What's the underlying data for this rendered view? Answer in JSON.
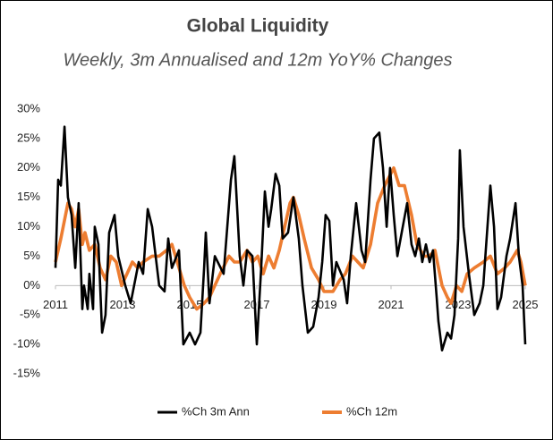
{
  "chart_data": {
    "type": "line",
    "title": "Global Liquidity",
    "subtitle": "Weekly, 3m Annualised and 12m YoY% Changes",
    "xlim": [
      2011,
      2025
    ],
    "xticks": [
      2011,
      2013,
      2015,
      2017,
      2019,
      2021,
      2023,
      2025
    ],
    "ylim": [
      -15,
      30
    ],
    "yticks": [
      {
        "value": -15,
        "label": "-15%"
      },
      {
        "value": -10,
        "label": "-10%"
      },
      {
        "value": -5,
        "label": "-5%"
      },
      {
        "value": 0,
        "label": "0%"
      },
      {
        "value": 5,
        "label": "5%"
      },
      {
        "value": 10,
        "label": "10%"
      },
      {
        "value": 15,
        "label": "15%"
      },
      {
        "value": 20,
        "label": "20%"
      },
      {
        "value": 25,
        "label": "25%"
      },
      {
        "value": 30,
        "label": "30%"
      }
    ],
    "grid": false,
    "legend": "bottom",
    "series": [
      {
        "name": "%Ch 3m Ann",
        "color": "#000000",
        "x": [
          2011.0,
          2011.08,
          2011.16,
          2011.27,
          2011.37,
          2011.48,
          2011.59,
          2011.69,
          2011.8,
          2011.85,
          2011.96,
          2012.01,
          2012.12,
          2012.17,
          2012.28,
          2012.39,
          2012.49,
          2012.6,
          2012.76,
          2012.87,
          2013.08,
          2013.24,
          2013.48,
          2013.61,
          2013.75,
          2013.88,
          2014.09,
          2014.25,
          2014.36,
          2014.47,
          2014.68,
          2014.81,
          2015.0,
          2015.16,
          2015.32,
          2015.43,
          2015.48,
          2015.59,
          2015.75,
          2016.01,
          2016.23,
          2016.33,
          2016.49,
          2016.6,
          2016.71,
          2016.87,
          2017.0,
          2017.13,
          2017.24,
          2017.35,
          2017.43,
          2017.56,
          2017.67,
          2017.77,
          2017.93,
          2018.09,
          2018.25,
          2018.36,
          2018.52,
          2018.68,
          2018.84,
          2018.95,
          2019.05,
          2019.16,
          2019.27,
          2019.37,
          2019.59,
          2019.69,
          2019.8,
          2019.96,
          2020.12,
          2020.23,
          2020.39,
          2020.49,
          2020.65,
          2020.76,
          2020.87,
          2020.97,
          2021.08,
          2021.19,
          2021.35,
          2021.48,
          2021.61,
          2021.72,
          2021.83,
          2021.93,
          2022.04,
          2022.15,
          2022.25,
          2022.36,
          2022.41,
          2022.52,
          2022.68,
          2022.79,
          2022.89,
          2023.0,
          2023.05,
          2023.16,
          2023.32,
          2023.48,
          2023.64,
          2023.75,
          2023.96,
          2024.07,
          2024.17,
          2024.28,
          2024.44,
          2024.55,
          2024.71,
          2024.81,
          2024.92,
          2025.0
        ],
        "values": [
          3,
          18,
          17,
          27,
          15,
          12,
          3,
          14,
          -4,
          0,
          -4,
          2,
          -4,
          10,
          7,
          -8,
          -5,
          9,
          12,
          5,
          0,
          -3,
          4,
          2,
          13,
          10,
          0,
          -1,
          8,
          3,
          6,
          -10,
          -8,
          -10,
          -8,
          3,
          9,
          -3,
          5,
          2,
          18,
          22,
          5,
          0,
          6,
          5,
          -10,
          3,
          16,
          10,
          13,
          19,
          17,
          8,
          9,
          15,
          8,
          0,
          -8,
          -7,
          -2,
          4,
          12,
          11,
          0,
          4,
          1,
          -3,
          5,
          14,
          6,
          4,
          18,
          25,
          26,
          20,
          10,
          20,
          12,
          5,
          10,
          14,
          7,
          5,
          8,
          4,
          7,
          4,
          6,
          -2,
          -6,
          -11,
          -8,
          -9,
          -5,
          8,
          23,
          10,
          2,
          -5,
          -3,
          0,
          17,
          10,
          -4,
          -2,
          5,
          8,
          14,
          5,
          0,
          -10
        ]
      },
      {
        "name": "%Ch 12m",
        "color": "#ed7d31",
        "x": [
          2011.0,
          2011.16,
          2011.37,
          2011.48,
          2011.59,
          2011.69,
          2011.8,
          2011.88,
          2012.01,
          2012.17,
          2012.33,
          2012.49,
          2012.65,
          2012.81,
          2012.97,
          2013.13,
          2013.29,
          2013.45,
          2013.61,
          2013.88,
          2014.09,
          2014.31,
          2014.47,
          2014.63,
          2014.84,
          2015.0,
          2015.21,
          2015.43,
          2015.59,
          2015.75,
          2015.91,
          2016.17,
          2016.33,
          2016.49,
          2016.71,
          2016.87,
          2017.03,
          2017.19,
          2017.35,
          2017.51,
          2017.67,
          2017.83,
          2017.99,
          2018.09,
          2018.25,
          2018.41,
          2018.63,
          2018.84,
          2019.0,
          2019.27,
          2019.48,
          2019.64,
          2019.85,
          2020.01,
          2020.17,
          2020.39,
          2020.6,
          2020.81,
          2021.08,
          2021.24,
          2021.4,
          2021.61,
          2021.77,
          2021.99,
          2022.15,
          2022.31,
          2022.52,
          2022.68,
          2022.79,
          2022.95,
          2023.11,
          2023.27,
          2023.48,
          2023.75,
          2023.96,
          2024.17,
          2024.39,
          2024.55,
          2024.76,
          2024.87,
          2025.0
        ],
        "values": [
          4,
          8,
          14,
          13,
          10,
          13,
          7,
          9,
          6,
          7,
          3,
          1,
          5,
          4,
          0,
          2,
          4,
          3,
          4,
          5,
          5,
          6,
          7,
          4,
          0,
          -2,
          -4,
          -3,
          -2,
          0,
          2,
          5,
          4,
          4,
          6,
          4,
          5,
          2,
          5,
          3,
          6,
          10,
          14,
          15,
          12,
          8,
          3,
          1,
          -1,
          -1,
          1,
          2,
          5,
          4,
          3,
          7,
          14,
          17,
          20,
          17,
          17,
          12,
          7,
          5,
          5,
          6,
          0,
          -2,
          -3,
          0,
          -1,
          2,
          3,
          4,
          5,
          2,
          3,
          4,
          6,
          4,
          0
        ]
      }
    ]
  }
}
